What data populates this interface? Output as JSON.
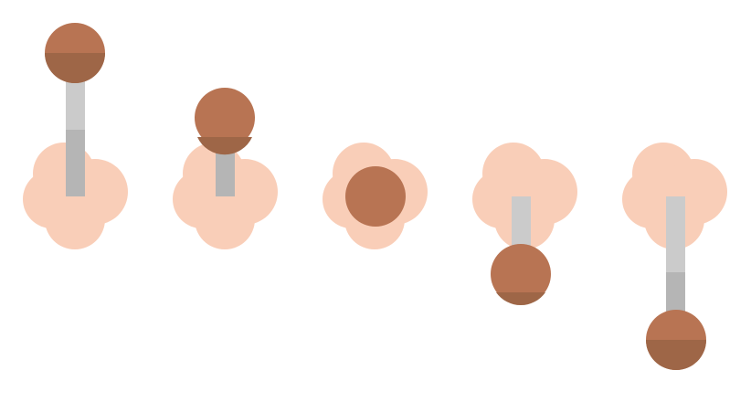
{
  "colors": {
    "background": "#ffffff",
    "blob": "#f9ceb8",
    "stick_light": "#cbcbcb",
    "stick_dark": "#b5b5b5",
    "ball_top": "#b87453",
    "ball_bottom": "#9e6647"
  },
  "figures": [
    {
      "name": "joystick-up-full",
      "direction": "up",
      "extension": 1.0
    },
    {
      "name": "joystick-up-half",
      "direction": "up",
      "extension": 0.55
    },
    {
      "name": "joystick-neutral",
      "direction": "none",
      "extension": 0.0
    },
    {
      "name": "joystick-down-half",
      "direction": "down",
      "extension": 0.55
    },
    {
      "name": "joystick-down-full",
      "direction": "down",
      "extension": 1.0
    }
  ]
}
